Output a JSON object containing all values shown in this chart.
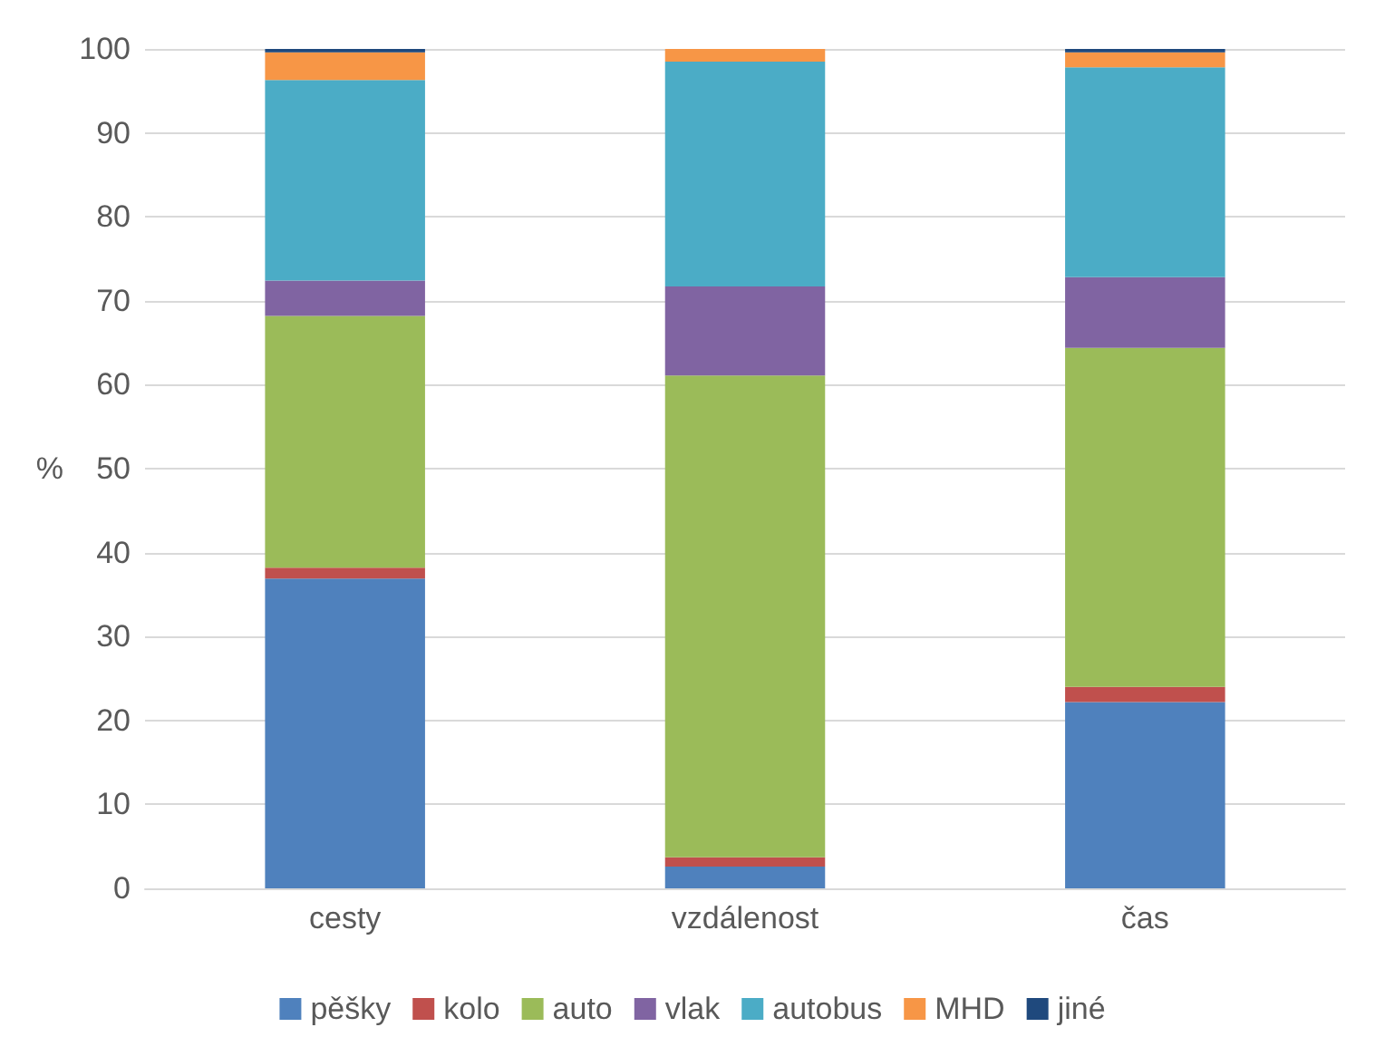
{
  "chart_data": {
    "type": "bar",
    "stacked": true,
    "ylabel": "%",
    "categories": [
      "cesty",
      "vzdálenost",
      "čas"
    ],
    "series": [
      {
        "name": "pěšky",
        "color": "#4f81bd",
        "values": [
          36.9,
          2.6,
          22.2
        ]
      },
      {
        "name": "kolo",
        "color": "#c0504d",
        "values": [
          1.3,
          1.1,
          1.8
        ]
      },
      {
        "name": "auto",
        "color": "#9bbb59",
        "values": [
          30.0,
          57.4,
          40.4
        ]
      },
      {
        "name": "vlak",
        "color": "#8064a2",
        "values": [
          4.2,
          10.6,
          8.4
        ]
      },
      {
        "name": "autobus",
        "color": "#4bacc6",
        "values": [
          23.9,
          26.8,
          25.0
        ]
      },
      {
        "name": "MHD",
        "color": "#f79646",
        "values": [
          3.3,
          1.5,
          1.8
        ]
      },
      {
        "name": "jiné",
        "color": "#1f497d",
        "values": [
          0.4,
          0,
          0.4
        ]
      }
    ],
    "ylim": [
      0,
      100
    ],
    "yticks": [
      0,
      10,
      20,
      30,
      40,
      50,
      60,
      70,
      80,
      90,
      100
    ],
    "grid": "y",
    "legend": "bottom"
  }
}
